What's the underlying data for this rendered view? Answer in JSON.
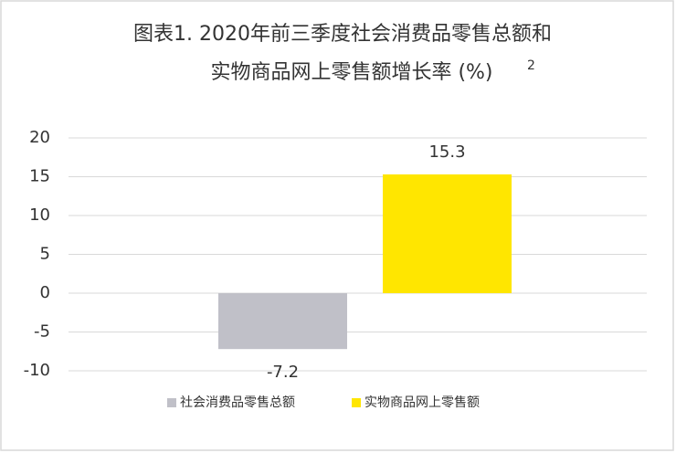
{
  "chart_data": {
    "type": "bar",
    "title": [
      "图表1. 2020年前三季度社会消费品零售总额和",
      "实物商品网上零售额增长率 (%)"
    ],
    "title_superscript": "2",
    "categories": [
      null
    ],
    "series": [
      {
        "name": "社会消费品零售总额",
        "color": "#c0c0c8",
        "values": [
          -7.2
        ]
      },
      {
        "name": "实物商品网上零售额",
        "color": "#ffe600",
        "values": [
          15.3
        ]
      }
    ],
    "ylim": [
      -10,
      20
    ],
    "yticks": [
      20,
      15,
      10,
      5,
      0,
      -5,
      -10
    ],
    "grid": true,
    "legend": "bottom"
  }
}
